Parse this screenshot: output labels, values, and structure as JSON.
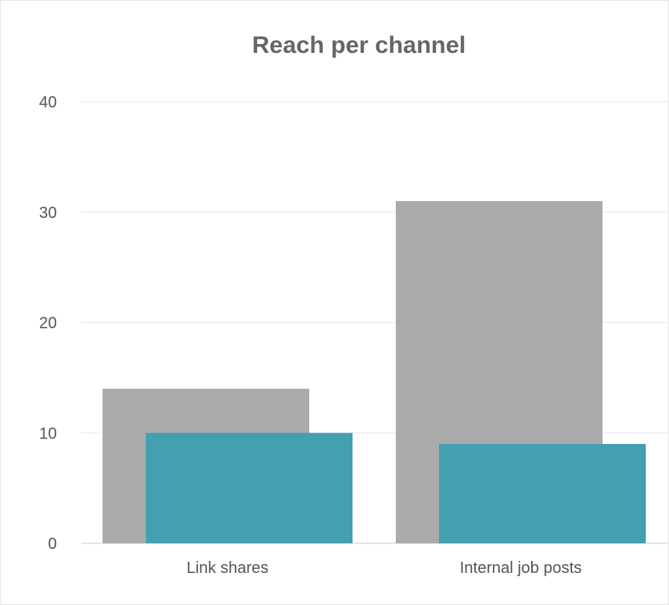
{
  "chart_data": {
    "type": "bar",
    "title": "Reach per channel",
    "categories": [
      "Link shares",
      "Internal job posts"
    ],
    "series": [
      {
        "values": [
          14,
          31
        ],
        "color": "#aaaaaa"
      },
      {
        "values": [
          10,
          9
        ],
        "color": "#42a0b0"
      }
    ],
    "ylim": [
      0,
      40
    ],
    "yticks": [
      "0",
      "10",
      "20",
      "30",
      "40"
    ],
    "grid": true,
    "legend": "none"
  }
}
